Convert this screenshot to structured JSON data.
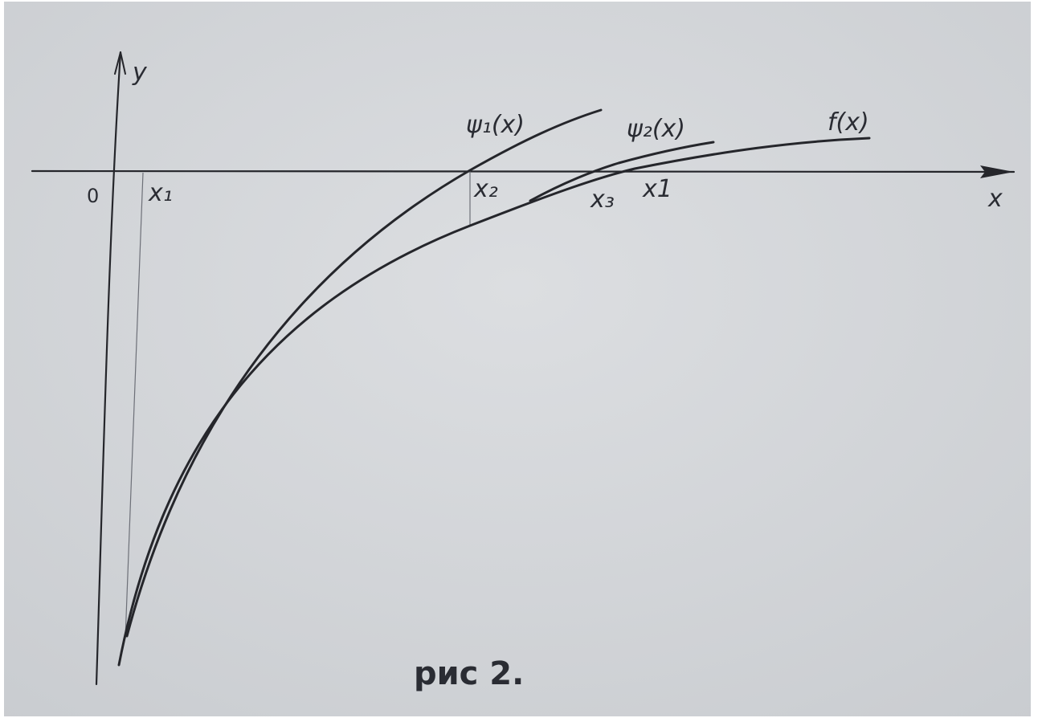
{
  "axes": {
    "y_label": "y",
    "x_label": "x",
    "origin": "0"
  },
  "points": {
    "x1": "x₁",
    "x2": "x₂",
    "x3": "x₃",
    "x_bar": "x1"
  },
  "curves": {
    "psi1": "ψ₁(x)",
    "psi2": "ψ₂(x)",
    "f": "f(x)"
  },
  "caption": "рис 2."
}
